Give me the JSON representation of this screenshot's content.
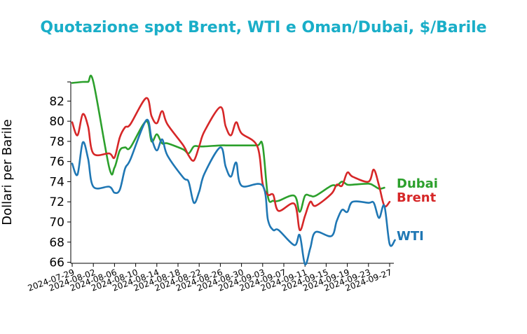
{
  "chart_data": {
    "type": "line",
    "title": "Quotazione spot Brent, WTI e Oman/Dubai, $/Barile",
    "xlabel": "",
    "ylabel": "Dollari per Barile",
    "ylim": [
      65.9,
      83.9
    ],
    "yticks": [
      66,
      68,
      70,
      72,
      74,
      76,
      78,
      80,
      82
    ],
    "xlim": [
      "2024-07-29",
      "2024-09-27"
    ],
    "xticks": [
      "2024-07-29",
      "2024-08-02",
      "2024-08-06",
      "2024-08-10",
      "2024-08-14",
      "2024-08-18",
      "2024-08-22",
      "2024-08-26",
      "2024-08-30",
      "2024-09-03",
      "2024-09-07",
      "2024-09-11",
      "2024-09-15",
      "2024-09-19",
      "2024-09-23",
      "2024-09-27"
    ],
    "grid": false,
    "legend": "labels at line ends",
    "series": [
      {
        "name": "Dubai",
        "color": "#2ca02c",
        "points": [
          [
            "2024-07-29",
            83.8
          ],
          [
            "2024-07-31",
            83.9
          ],
          [
            "2024-08-01",
            83.9
          ],
          [
            "2024-08-02",
            83.9
          ],
          [
            "2024-08-05",
            75.4
          ],
          [
            "2024-08-06",
            75.4
          ],
          [
            "2024-08-07",
            77.1
          ],
          [
            "2024-08-08",
            77.4
          ],
          [
            "2024-08-09",
            77.4
          ],
          [
            "2024-08-12",
            80.0
          ],
          [
            "2024-08-13",
            78.0
          ],
          [
            "2024-08-14",
            78.7
          ],
          [
            "2024-08-15",
            77.8
          ],
          [
            "2024-08-16",
            77.8
          ],
          [
            "2024-08-19",
            77.2
          ],
          [
            "2024-08-20",
            76.8
          ],
          [
            "2024-08-21",
            77.5
          ],
          [
            "2024-08-22",
            77.5
          ],
          [
            "2024-08-23",
            77.5
          ],
          [
            "2024-08-26",
            77.6
          ],
          [
            "2024-08-27",
            77.6
          ],
          [
            "2024-08-28",
            77.6
          ],
          [
            "2024-08-29",
            77.6
          ],
          [
            "2024-08-30",
            77.6
          ],
          [
            "2024-09-02",
            77.6
          ],
          [
            "2024-09-03",
            77.6
          ],
          [
            "2024-09-04",
            72.5
          ],
          [
            "2024-09-05",
            72.1
          ],
          [
            "2024-09-06",
            72.1
          ],
          [
            "2024-09-09",
            72.6
          ],
          [
            "2024-09-10",
            71.0
          ],
          [
            "2024-09-11",
            72.6
          ],
          [
            "2024-09-12",
            72.6
          ],
          [
            "2024-09-13",
            72.6
          ],
          [
            "2024-09-16",
            73.6
          ],
          [
            "2024-09-17",
            73.6
          ],
          [
            "2024-09-18",
            74.0
          ],
          [
            "2024-09-19",
            73.7
          ],
          [
            "2024-09-20",
            73.7
          ],
          [
            "2024-09-23",
            73.8
          ],
          [
            "2024-09-24",
            73.6
          ],
          [
            "2024-09-25",
            73.3
          ],
          [
            "2024-09-26",
            73.4
          ]
        ]
      },
      {
        "name": "Brent",
        "color": "#d62728",
        "points": [
          [
            "2024-07-29",
            79.9
          ],
          [
            "2024-07-30",
            78.6
          ],
          [
            "2024-07-31",
            80.7
          ],
          [
            "2024-08-01",
            79.5
          ],
          [
            "2024-08-02",
            76.8
          ],
          [
            "2024-08-05",
            76.8
          ],
          [
            "2024-08-06",
            76.4
          ],
          [
            "2024-08-07",
            78.4
          ],
          [
            "2024-08-08",
            79.4
          ],
          [
            "2024-08-09",
            79.7
          ],
          [
            "2024-08-12",
            82.3
          ],
          [
            "2024-08-13",
            80.5
          ],
          [
            "2024-08-14",
            79.8
          ],
          [
            "2024-08-15",
            81.0
          ],
          [
            "2024-08-16",
            79.7
          ],
          [
            "2024-08-19",
            77.6
          ],
          [
            "2024-08-20",
            76.6
          ],
          [
            "2024-08-21",
            76.1
          ],
          [
            "2024-08-22",
            77.5
          ],
          [
            "2024-08-23",
            79.0
          ],
          [
            "2024-08-26",
            81.4
          ],
          [
            "2024-08-27",
            79.5
          ],
          [
            "2024-08-28",
            78.6
          ],
          [
            "2024-08-29",
            79.9
          ],
          [
            "2024-08-30",
            78.8
          ],
          [
            "2024-09-02",
            77.5
          ],
          [
            "2024-09-03",
            73.8
          ],
          [
            "2024-09-04",
            72.7
          ],
          [
            "2024-09-05",
            72.7
          ],
          [
            "2024-09-06",
            71.1
          ],
          [
            "2024-09-09",
            71.8
          ],
          [
            "2024-09-10",
            69.2
          ],
          [
            "2024-09-11",
            70.6
          ],
          [
            "2024-09-12",
            72.0
          ],
          [
            "2024-09-13",
            71.6
          ],
          [
            "2024-09-16",
            72.8
          ],
          [
            "2024-09-17",
            73.7
          ],
          [
            "2024-09-18",
            73.6
          ],
          [
            "2024-09-19",
            74.9
          ],
          [
            "2024-09-20",
            74.5
          ],
          [
            "2024-09-23",
            74.0
          ],
          [
            "2024-09-24",
            75.2
          ],
          [
            "2024-09-25",
            73.6
          ],
          [
            "2024-09-26",
            71.6
          ],
          [
            "2024-09-27",
            72.0
          ]
        ]
      },
      {
        "name": "WTI",
        "color": "#1f77b4",
        "points": [
          [
            "2024-07-29",
            75.8
          ],
          [
            "2024-07-30",
            74.7
          ],
          [
            "2024-07-31",
            77.9
          ],
          [
            "2024-08-01",
            76.3
          ],
          [
            "2024-08-02",
            73.5
          ],
          [
            "2024-08-05",
            73.5
          ],
          [
            "2024-08-06",
            72.9
          ],
          [
            "2024-08-07",
            73.2
          ],
          [
            "2024-08-08",
            75.3
          ],
          [
            "2024-08-09",
            76.2
          ],
          [
            "2024-08-12",
            80.1
          ],
          [
            "2024-08-13",
            78.3
          ],
          [
            "2024-08-14",
            77.1
          ],
          [
            "2024-08-15",
            78.2
          ],
          [
            "2024-08-16",
            76.6
          ],
          [
            "2024-08-19",
            74.4
          ],
          [
            "2024-08-20",
            74.0
          ],
          [
            "2024-08-21",
            71.9
          ],
          [
            "2024-08-22",
            73.0
          ],
          [
            "2024-08-23",
            74.8
          ],
          [
            "2024-08-26",
            77.4
          ],
          [
            "2024-08-27",
            75.5
          ],
          [
            "2024-08-28",
            74.5
          ],
          [
            "2024-08-29",
            75.9
          ],
          [
            "2024-08-30",
            73.6
          ],
          [
            "2024-09-03",
            73.6
          ],
          [
            "2024-09-04",
            70.2
          ],
          [
            "2024-09-05",
            69.2
          ],
          [
            "2024-09-06",
            69.2
          ],
          [
            "2024-09-09",
            67.7
          ],
          [
            "2024-09-10",
            68.7
          ],
          [
            "2024-09-11",
            65.8
          ],
          [
            "2024-09-12",
            67.4
          ],
          [
            "2024-09-13",
            69.0
          ],
          [
            "2024-09-16",
            68.6
          ],
          [
            "2024-09-17",
            70.1
          ],
          [
            "2024-09-18",
            71.2
          ],
          [
            "2024-09-19",
            71.0
          ],
          [
            "2024-09-20",
            72.0
          ],
          [
            "2024-09-23",
            71.9
          ],
          [
            "2024-09-24",
            71.9
          ],
          [
            "2024-09-25",
            70.4
          ],
          [
            "2024-09-26",
            71.6
          ],
          [
            "2024-09-27",
            67.8
          ],
          [
            "2024-09-28",
            68.2
          ]
        ]
      }
    ]
  }
}
